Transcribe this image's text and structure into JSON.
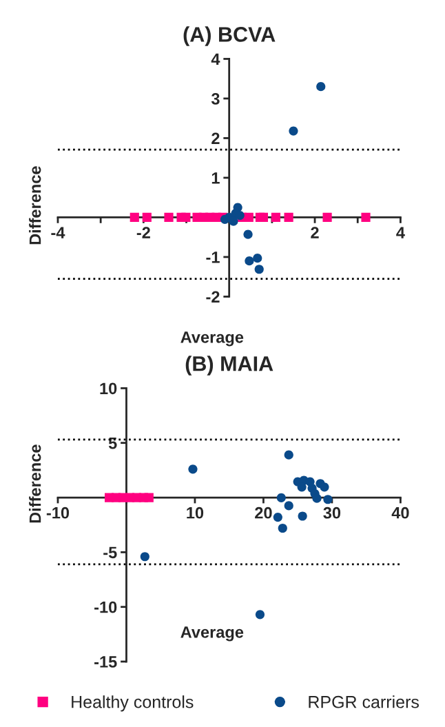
{
  "chart_data": [
    {
      "type": "scatter",
      "title": "(A) BCVA",
      "xlabel": "Average",
      "ylabel": "Difference",
      "xlim": [
        -4,
        4
      ],
      "ylim": [
        -2,
        4
      ],
      "legend": "bottom",
      "xticks": [
        -4,
        {
          "value": -3,
          "label": null
        },
        -2,
        {
          "value": -1,
          "label": null
        },
        {
          "value": 0,
          "label": null
        },
        {
          "value": 1,
          "label": null
        },
        2,
        {
          "value": 3,
          "label": null
        },
        4
      ],
      "yticks": [
        -2,
        -1,
        {
          "value": 0,
          "label": null
        },
        1,
        2,
        3,
        4
      ],
      "ref_lines": [
        {
          "axis": "y",
          "value": 1.71,
          "line_style": "dotted",
          "color": "#000000"
        },
        {
          "axis": "y",
          "value": -1.55,
          "line_style": "dotted",
          "color": "#000000"
        }
      ],
      "series": [
        {
          "name": "Healthy controls",
          "color": "#ff0080",
          "marker": "square",
          "x": [
            -2.21,
            -1.92,
            -1.41,
            -1.12,
            -1.01,
            -0.75,
            -0.6,
            -0.45,
            -0.3,
            -0.15,
            0.3,
            0.46,
            0.72,
            0.8,
            1.09,
            1.39,
            2.29,
            3.19
          ],
          "values": [
            0,
            0,
            0,
            0,
            0,
            0,
            0,
            0,
            0,
            0,
            0,
            0,
            0,
            0,
            0,
            0,
            0,
            0
          ]
        },
        {
          "name": "RPGR carriers",
          "color": "#0a4a8a",
          "marker": "circle",
          "x": [
            2.14,
            1.5,
            0.44,
            0.47,
            0.66,
            0.7,
            0,
            0.05,
            0.1,
            0.2,
            0.15,
            -0.1,
            0.05,
            0.25,
            0.1
          ],
          "values": [
            3.3,
            2.18,
            -0.43,
            -1.1,
            -1.03,
            -1.31,
            0,
            null,
            null,
            0.25,
            0.1,
            -0.05,
            null,
            0.05,
            -0.1
          ]
        }
      ]
    },
    {
      "type": "scatter",
      "title": "(B) MAIA",
      "xlabel": "Average",
      "ylabel": "Difference",
      "xlim": [
        -10,
        40
      ],
      "ylim": [
        -15,
        10
      ],
      "xticks": [
        -10,
        {
          "value": 0,
          "label": null
        },
        10,
        20,
        30,
        40
      ],
      "yticks": [
        -15,
        -10,
        -5,
        {
          "value": 0,
          "label": null
        },
        5,
        10
      ],
      "ref_lines": [
        {
          "axis": "y",
          "value": 5.3,
          "line_style": "dotted",
          "color": "#000000"
        },
        {
          "axis": "y",
          "value": -6.1,
          "line_style": "dotted",
          "color": "#000000"
        }
      ],
      "series": [
        {
          "color": "#ff0080",
          "marker": "square",
          "x": [
            -2.5,
            -1.5,
            -0.5,
            0.5,
            1.5,
            2.5,
            3.3
          ],
          "values": [
            0,
            0,
            0,
            0,
            0,
            0,
            0
          ]
        },
        {
          "color": "#0a4a8a",
          "marker": "circle",
          "x": [
            9.7,
            2.7,
            19.5,
            23.7,
            25.0,
            25.9,
            25.6,
            26.8,
            27.1,
            27.5,
            27.8,
            28.3,
            28.9,
            29.4,
            22.6,
            23.7,
            22.1,
            25.7,
            22.8
          ],
          "values": [
            2.6,
            -5.4,
            -10.7,
            3.9,
            1.45,
            1.57,
            0.96,
            1.45,
            0.85,
            0.36,
            -0.07,
            1.28,
            0.96,
            -0.17,
            -0.02,
            -0.75,
            -1.8,
            -1.7,
            -2.8
          ]
        }
      ]
    }
  ]
}
